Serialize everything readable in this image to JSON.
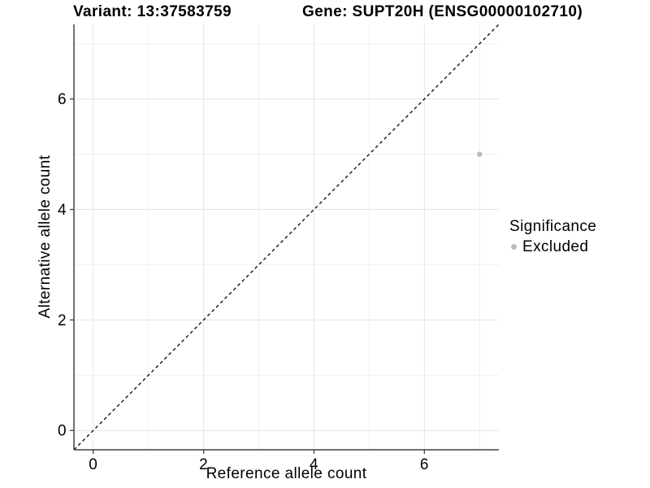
{
  "titles": {
    "variant": "Variant: 13:37583759",
    "gene": "Gene: SUPT20H (ENSG00000102710)"
  },
  "chart_data": {
    "type": "scatter",
    "xlabel": "Reference allele count",
    "ylabel": "Alternative allele count",
    "xlim": [
      -0.35,
      7.35
    ],
    "ylim": [
      -0.35,
      7.35
    ],
    "x_major_ticks": [
      0,
      2,
      4,
      6
    ],
    "x_minor_ticks": [
      1,
      3,
      5,
      7
    ],
    "y_major_ticks": [
      0,
      2,
      4,
      6
    ],
    "y_minor_ticks": [
      1,
      3,
      5,
      7
    ],
    "grid": true,
    "identity_line": {
      "slope": 1,
      "intercept": 0,
      "style": "dashed",
      "color": "#000000"
    },
    "series": [
      {
        "name": "Excluded",
        "color": "#bcbcbc",
        "points": [
          [
            7,
            5
          ]
        ]
      }
    ],
    "legend": {
      "title": "Significance",
      "position": "right",
      "entries": [
        {
          "label": "Excluded",
          "color": "#bcbcbc",
          "marker": "circle"
        }
      ]
    }
  },
  "colors": {
    "background": "#ffffff",
    "grid_major": "#e4e4e4",
    "grid_minor": "#f0f0f0",
    "axis": "#404040",
    "text": "#000000",
    "ref_line": "#000000"
  }
}
